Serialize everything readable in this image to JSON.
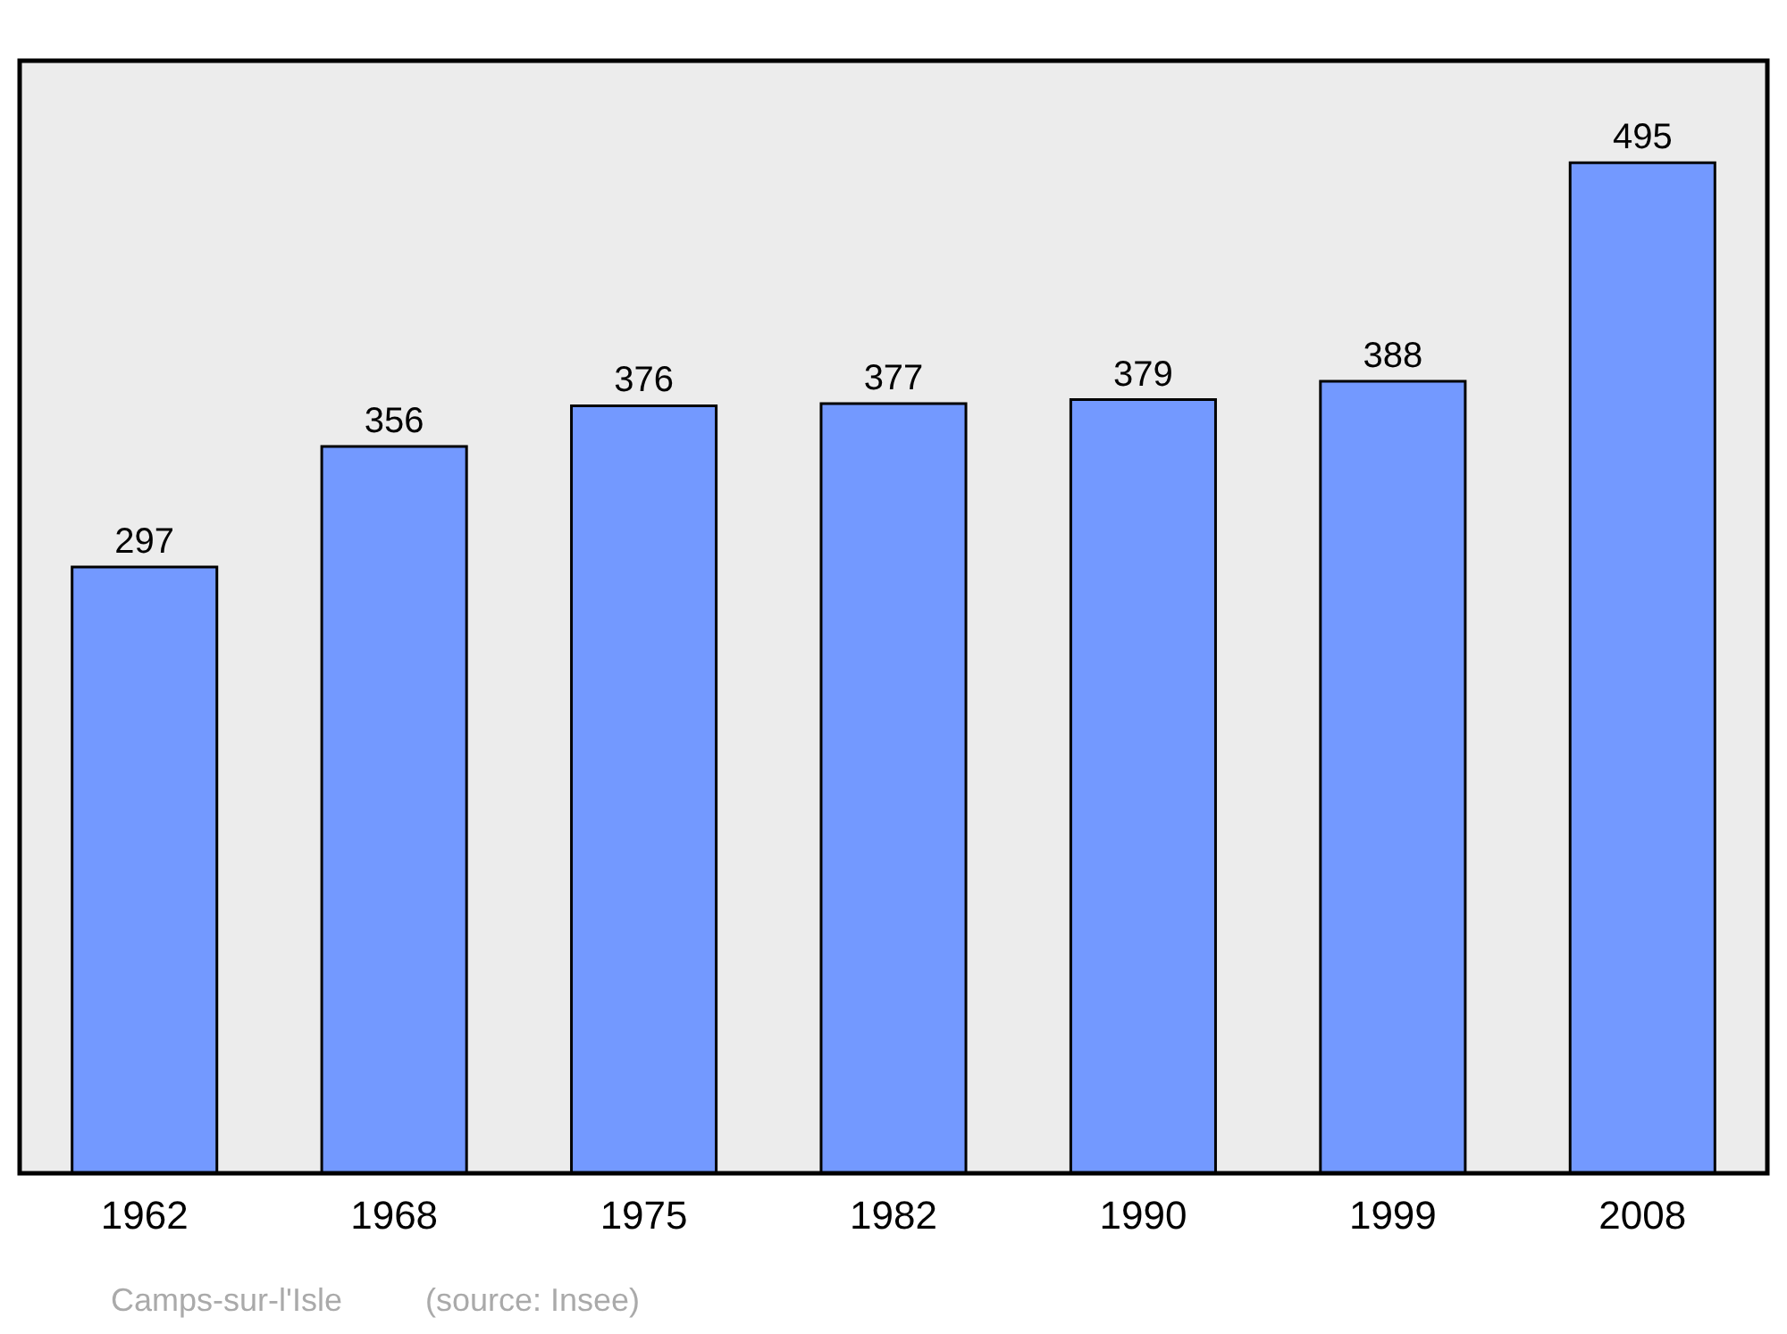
{
  "chart_data": {
    "type": "bar",
    "categories": [
      "1962",
      "1968",
      "1975",
      "1982",
      "1990",
      "1999",
      "2008"
    ],
    "values": [
      297,
      356,
      376,
      377,
      379,
      388,
      495
    ],
    "color": "#7399ff",
    "ylim": [
      0,
      545
    ],
    "data_labels": true,
    "tick_labels": "x",
    "annotations": [
      "Camps-sur-l'Isle",
      "(source: Insee)"
    ]
  }
}
